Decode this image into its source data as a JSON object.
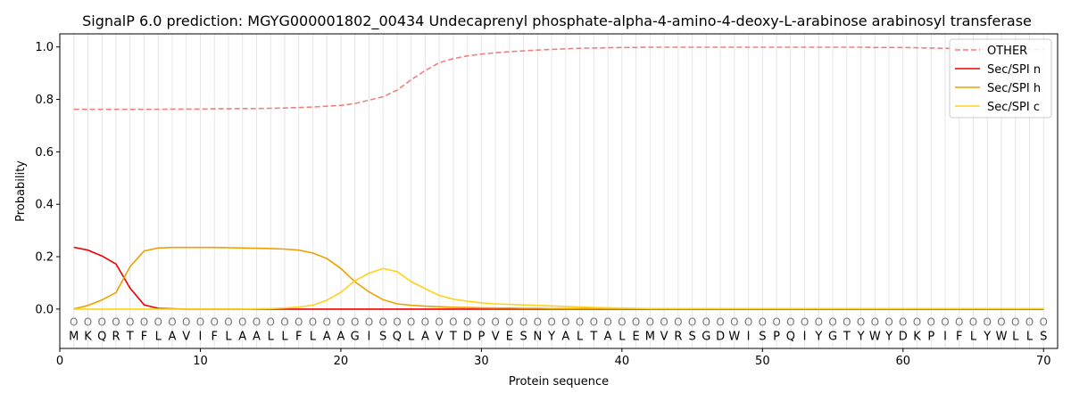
{
  "chart_data": {
    "type": "line",
    "title": "SignalP 6.0 prediction: MGYG000001802_00434 Undecaprenyl phosphate-alpha-4-amino-4-deoxy-L-arabinose arabinosyl transferase",
    "xlabel": "Protein sequence",
    "ylabel": "Probability",
    "xlim": [
      0,
      71
    ],
    "ylim": [
      -0.15,
      1.05
    ],
    "xticks": [
      0,
      10,
      20,
      30,
      40,
      50,
      60,
      70
    ],
    "yticks": [
      0.0,
      0.2,
      0.4,
      0.6,
      0.8,
      1.0
    ],
    "ytick_labels": [
      "0.0",
      "0.2",
      "0.4",
      "0.6",
      "0.8",
      "1.0"
    ],
    "grid": "vertical lines at each residue",
    "legend_position": "top-right",
    "sequence": [
      "M",
      "K",
      "Q",
      "R",
      "T",
      "F",
      "L",
      "A",
      "V",
      "I",
      "F",
      "L",
      "A",
      "A",
      "L",
      "L",
      "F",
      "L",
      "A",
      "A",
      "G",
      "I",
      "S",
      "Q",
      "L",
      "A",
      "V",
      "T",
      "D",
      "P",
      "V",
      "E",
      "S",
      "N",
      "Y",
      "A",
      "L",
      "T",
      "A",
      "L",
      "E",
      "M",
      "V",
      "R",
      "S",
      "G",
      "D",
      "W",
      "I",
      "S",
      "P",
      "Q",
      "I",
      "Y",
      "G",
      "T",
      "Y",
      "W",
      "Y",
      "D",
      "K",
      "P",
      "I",
      "F",
      "L",
      "Y",
      "W",
      "L",
      "L",
      "S"
    ],
    "position_marker": "O",
    "x": [
      1,
      2,
      3,
      4,
      5,
      6,
      7,
      8,
      9,
      10,
      11,
      12,
      13,
      14,
      15,
      16,
      17,
      18,
      19,
      20,
      21,
      22,
      23,
      24,
      25,
      26,
      27,
      28,
      29,
      30,
      31,
      32,
      33,
      34,
      35,
      36,
      37,
      38,
      39,
      40,
      41,
      42,
      43,
      44,
      45,
      46,
      47,
      48,
      49,
      50,
      51,
      52,
      53,
      54,
      55,
      56,
      57,
      58,
      59,
      60,
      61,
      62,
      63,
      64,
      65,
      66,
      67,
      68,
      69,
      70
    ],
    "series": [
      {
        "name": "OTHER",
        "color": "#f08080",
        "style": "dashed",
        "values": [
          0.762,
          0.762,
          0.762,
          0.762,
          0.762,
          0.762,
          0.762,
          0.763,
          0.763,
          0.763,
          0.764,
          0.764,
          0.765,
          0.765,
          0.766,
          0.767,
          0.769,
          0.771,
          0.774,
          0.777,
          0.784,
          0.797,
          0.81,
          0.835,
          0.875,
          0.91,
          0.94,
          0.956,
          0.966,
          0.973,
          0.978,
          0.982,
          0.985,
          0.988,
          0.991,
          0.993,
          0.995,
          0.996,
          0.997,
          0.998,
          0.998,
          0.999,
          0.999,
          0.999,
          0.999,
          0.999,
          0.999,
          0.999,
          0.999,
          0.999,
          0.999,
          0.999,
          0.999,
          0.999,
          0.999,
          0.999,
          0.999,
          0.998,
          0.998,
          0.998,
          0.997,
          0.996,
          0.995,
          0.994,
          0.993,
          0.992,
          0.992,
          0.991,
          0.991,
          0.991
        ]
      },
      {
        "name": "Sec/SPI n",
        "color": "#ee0000",
        "style": "solid",
        "values": [
          0.236,
          0.225,
          0.203,
          0.172,
          0.08,
          0.016,
          0.003,
          0.001,
          0,
          0,
          0,
          0,
          0,
          0,
          0,
          0,
          0,
          0,
          0,
          0,
          0,
          0,
          0,
          0,
          0,
          0,
          0,
          0,
          0,
          0,
          0,
          0,
          0,
          0,
          0,
          0,
          0,
          0,
          0,
          0,
          0,
          0,
          0,
          0,
          0,
          0,
          0,
          0,
          0,
          0,
          0,
          0,
          0,
          0,
          0,
          0,
          0,
          0,
          0,
          0,
          0,
          0,
          0,
          0,
          0,
          0,
          0,
          0,
          0,
          0
        ]
      },
      {
        "name": "Sec/SPI h",
        "color": "#f0a000",
        "style": "solid",
        "values": [
          0.001,
          0.014,
          0.035,
          0.063,
          0.162,
          0.222,
          0.233,
          0.235,
          0.235,
          0.235,
          0.235,
          0.234,
          0.233,
          0.232,
          0.231,
          0.229,
          0.225,
          0.214,
          0.193,
          0.155,
          0.104,
          0.066,
          0.036,
          0.02,
          0.015,
          0.011,
          0.009,
          0.007,
          0.006,
          0.005,
          0.004,
          0.004,
          0.003,
          0.003,
          0.002,
          0.002,
          0.002,
          0.002,
          0.002,
          0.002,
          0.002,
          0.002,
          0.002,
          0.002,
          0.002,
          0.002,
          0.002,
          0.002,
          0.002,
          0.002,
          0.002,
          0.002,
          0.002,
          0.002,
          0.002,
          0.002,
          0.002,
          0.002,
          0.002,
          0.002,
          0.002,
          0.002,
          0.002,
          0.002,
          0.002,
          0.002,
          0.002,
          0.002,
          0.002,
          0.002
        ]
      },
      {
        "name": "Sec/SPI c",
        "color": "#ffd21f",
        "style": "solid",
        "values": [
          0,
          0,
          0,
          0,
          0,
          0,
          0,
          0,
          0,
          0,
          0,
          0,
          0,
          0.001,
          0.002,
          0.004,
          0.008,
          0.015,
          0.034,
          0.064,
          0.108,
          0.137,
          0.155,
          0.143,
          0.105,
          0.078,
          0.052,
          0.038,
          0.03,
          0.024,
          0.02,
          0.018,
          0.016,
          0.014,
          0.012,
          0.01,
          0.008,
          0.006,
          0.005,
          0.004,
          0.003,
          0.002,
          0.002,
          0.002,
          0.002,
          0.002,
          0.002,
          0.002,
          0.002,
          0.002,
          0.002,
          0.002,
          0.002,
          0.002,
          0.002,
          0.002,
          0.002,
          0.002,
          0.002,
          0.002,
          0.002,
          0.002,
          0.002,
          0.002,
          0.002,
          0.002,
          0.002,
          0.002,
          0.002,
          0.002
        ]
      }
    ]
  }
}
